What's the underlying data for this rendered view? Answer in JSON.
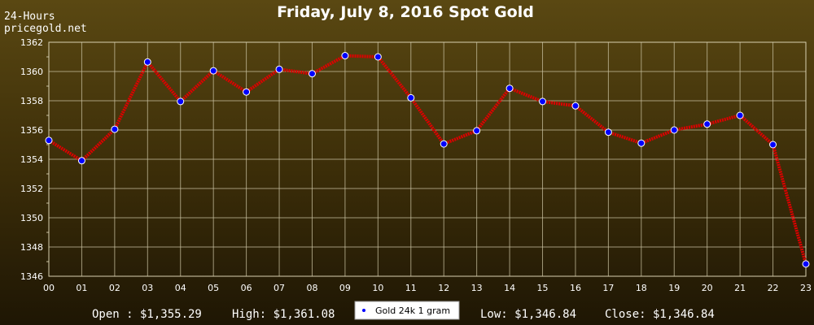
{
  "corner": {
    "line1": "24-Hours",
    "line2": "pricegold.net"
  },
  "footer": {
    "open": "Open : $1,355.29",
    "high": "High: $1,361.08",
    "low": "Low: $1,346.84",
    "close": "Close: $1,346.84"
  },
  "chart_data": {
    "type": "line",
    "title": "Friday, July 8, 2016 Spot Gold",
    "xlabel": "",
    "ylabel": "",
    "categories": [
      "00",
      "01",
      "02",
      "03",
      "04",
      "05",
      "06",
      "07",
      "08",
      "09",
      "10",
      "11",
      "12",
      "13",
      "14",
      "15",
      "16",
      "17",
      "18",
      "19",
      "20",
      "21",
      "22",
      "23"
    ],
    "ylim": [
      1346,
      1362
    ],
    "yticks": [
      1346,
      1348,
      1350,
      1352,
      1354,
      1356,
      1358,
      1360,
      1362
    ],
    "grid": true,
    "legend": "bottom-center",
    "series": [
      {
        "name": "Gold 24k 1 gram",
        "line_color": "#dd0000",
        "marker_color": "#0000ff",
        "values": [
          1355.29,
          1353.9,
          1356.05,
          1360.65,
          1357.95,
          1360.05,
          1358.6,
          1360.15,
          1359.85,
          1361.08,
          1361.0,
          1358.2,
          1355.05,
          1355.95,
          1358.85,
          1357.95,
          1357.65,
          1355.85,
          1355.1,
          1356.0,
          1356.4,
          1357.0,
          1355.0,
          1346.84
        ]
      }
    ]
  }
}
